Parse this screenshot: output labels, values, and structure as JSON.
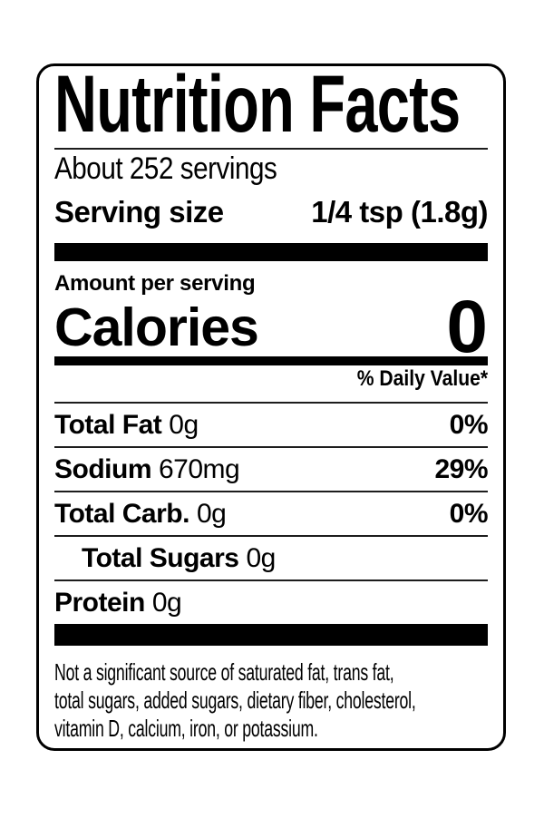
{
  "label": {
    "title": "Nutrition Facts",
    "servings_per_container": "About 252 servings",
    "serving_size": {
      "label": "Serving size",
      "value": "1/4 tsp (1.8g)"
    },
    "amount_per_serving_label": "Amount per serving",
    "calories": {
      "label": "Calories",
      "value": "0"
    },
    "daily_value_header": "% Daily Value*",
    "nutrients": [
      {
        "name": "Total Fat",
        "amount": "0g",
        "daily_value": "0%"
      },
      {
        "name": "Sodium",
        "amount": "670mg",
        "daily_value": "29%"
      },
      {
        "name": "Total Carb.",
        "amount": "0g",
        "daily_value": "0%"
      },
      {
        "name": "Total Sugars",
        "amount": "0g",
        "daily_value": ""
      },
      {
        "name": "Protein",
        "amount": "0g",
        "daily_value": ""
      }
    ],
    "footnote_lines": [
      "Not a significant source of saturated fat, trans fat,",
      "total sugars, added sugars, dietary fiber, cholesterol,",
      "vitamin D, calcium, iron, or potassium."
    ],
    "colors": {
      "text": "#000000",
      "background": "#ffffff",
      "border": "#000000",
      "bar": "#000000"
    }
  }
}
